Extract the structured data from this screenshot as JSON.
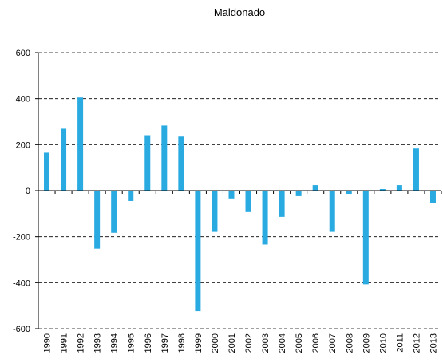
{
  "chart_data": {
    "type": "bar",
    "title": "Maldonado",
    "categories": [
      "1990",
      "1991",
      "1992",
      "1993",
      "1994",
      "1995",
      "1996",
      "1997",
      "1998",
      "1999",
      "2000",
      "2001",
      "2002",
      "2003",
      "2004",
      "2005",
      "2006",
      "2007",
      "2008",
      "2009",
      "2010",
      "2011",
      "2012",
      "2013"
    ],
    "values": [
      165,
      269,
      405,
      -252,
      -183,
      -45,
      241,
      283,
      235,
      -524,
      -179,
      -34,
      -93,
      -234,
      -114,
      -24,
      24,
      -179,
      -14,
      -407,
      7,
      24,
      183,
      -55
    ],
    "color": "#29abe2",
    "ylim": [
      -600,
      600
    ],
    "yticks": [
      -600,
      -400,
      -200,
      0,
      200,
      400,
      600
    ],
    "grid": true
  }
}
